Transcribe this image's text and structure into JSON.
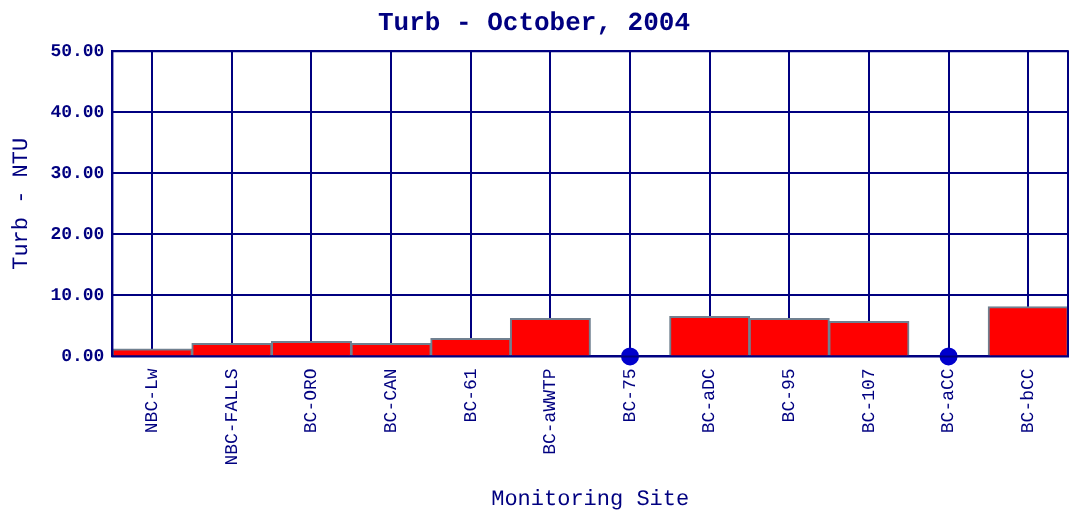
{
  "chart_data": {
    "type": "bar",
    "title": "Turb - October, 2004",
    "xlabel": "Monitoring Site",
    "ylabel": "Turb - NTU",
    "categories": [
      "NBC-Lw",
      "NBC-FALLS",
      "BC-ORO",
      "BC-CAN",
      "BC-61",
      "BC-aWWTP",
      "BC-75",
      "BC-aDC",
      "BC-95",
      "BC-107",
      "BC-aCC",
      "BC-bCC"
    ],
    "series": [
      {
        "color": "#ff0000",
        "values": [
          1.2,
          2.1,
          2.4,
          2.1,
          2.9,
          6.2,
          0,
          6.5,
          6.2,
          5.7,
          0,
          8.1
        ]
      },
      {
        "type": "scatter",
        "color": "#0000cc",
        "x": [
          "BC-75",
          "BC-aCC"
        ],
        "values": [
          0,
          0
        ],
        "marker": "circle"
      }
    ],
    "ylim": [
      0,
      50
    ],
    "yticks": [
      {
        "value": 0,
        "label": "0.00"
      },
      {
        "value": 10,
        "label": "10.00"
      },
      {
        "value": 20,
        "label": "20.00"
      },
      {
        "value": 30,
        "label": "30.00"
      },
      {
        "value": 40,
        "label": "40.00"
      },
      {
        "value": 50,
        "label": "50.00"
      }
    ],
    "grid": true
  }
}
